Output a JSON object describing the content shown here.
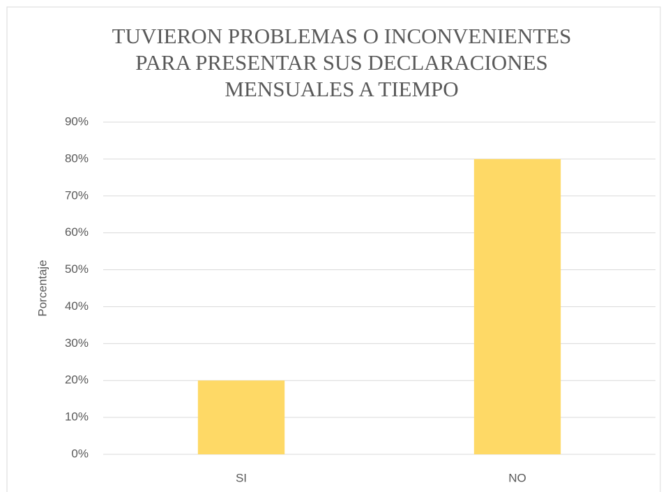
{
  "chart_data": {
    "type": "bar",
    "title": [
      "TUVIERON PROBLEMAS O INCONVENIENTES",
      "PARA PRESENTAR SUS DECLARACIONES",
      "MENSUALES A TIEMPO"
    ],
    "y_label": "Porcentaje",
    "categories": [
      "SI",
      "NO"
    ],
    "values": [
      20,
      80
    ],
    "color": "#fed966",
    "ylim": [
      0,
      90
    ],
    "yticks": [
      {
        "value": 0,
        "label": "0%"
      },
      {
        "value": 10,
        "label": "10%"
      },
      {
        "value": 20,
        "label": "20%"
      },
      {
        "value": 30,
        "label": "30%"
      },
      {
        "value": 40,
        "label": "40%"
      },
      {
        "value": 50,
        "label": "50%"
      },
      {
        "value": 60,
        "label": "60%"
      },
      {
        "value": 70,
        "label": "70%"
      },
      {
        "value": 80,
        "label": "80%"
      },
      {
        "value": 90,
        "label": "90%"
      }
    ],
    "grid": true
  }
}
